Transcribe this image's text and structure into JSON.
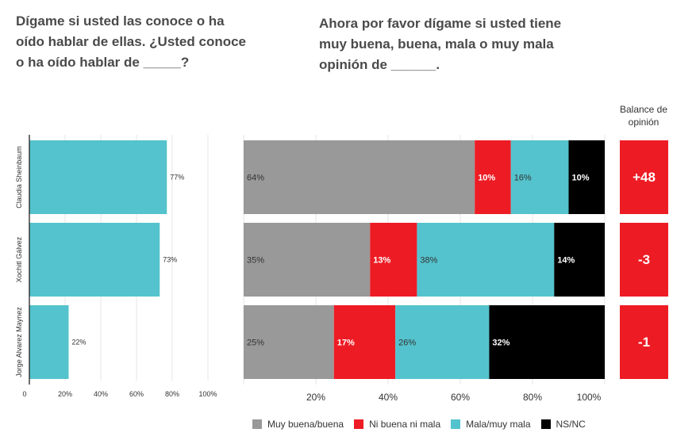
{
  "titles": {
    "left": "Dígame si usted las conoce o ha oído hablar de ellas. ¿Usted conoce o ha oído hablar de _____?",
    "right": "Ahora por favor dígame si usted tiene muy buena, buena, mala o muy mala opinión de ______.",
    "balance_header": "Balance de opinión"
  },
  "colors": {
    "awareness": "#54c3cd",
    "good": "#999999",
    "neutral": "#ed1c24",
    "bad": "#54c3cd",
    "nsnc": "#000000",
    "balance": "#ed1c24",
    "grid": "#e6e6e6",
    "axis": "#222222"
  },
  "chart_data": [
    {
      "type": "bar",
      "orientation": "horizontal",
      "categories": [
        "Claudia Sheinbaum",
        "Xochitl Gálvez",
        "Jorge Alvarez Maynez"
      ],
      "values": [
        77,
        73,
        22
      ],
      "value_labels": [
        "77%",
        "73%",
        "22%"
      ],
      "xlim": [
        0,
        100
      ],
      "ticks": [
        "0",
        "20%",
        "40%",
        "60%",
        "80%",
        "100%"
      ]
    },
    {
      "type": "bar",
      "orientation": "horizontal",
      "stacked": true,
      "categories": [
        "Claudia Sheinbaum",
        "Xochitl Gálvez",
        "Jorge Alvarez Maynez"
      ],
      "series": [
        {
          "name": "Muy buena/buena",
          "color": "#999999",
          "values": [
            64,
            35,
            25
          ],
          "labels": [
            "64%",
            "35%",
            "25%"
          ]
        },
        {
          "name": "Ni buena ni mala",
          "color": "#ed1c24",
          "values": [
            10,
            13,
            17
          ],
          "labels": [
            "10%",
            "13%",
            "17%"
          ]
        },
        {
          "name": "Mala/muy mala",
          "color": "#54c3cd",
          "values": [
            16,
            38,
            26
          ],
          "labels": [
            "16%",
            "38%",
            "26%"
          ]
        },
        {
          "name": "NS/NC",
          "color": "#000000",
          "values": [
            10,
            14,
            32
          ],
          "labels": [
            "10%",
            "14%",
            "32%"
          ]
        }
      ],
      "xlim": [
        0,
        100
      ],
      "ticks": [
        "20%",
        "40%",
        "60%",
        "80%",
        "100%"
      ],
      "legend": "bottom"
    },
    {
      "type": "table",
      "header": "Balance de opinión",
      "categories": [
        "Claudia Sheinbaum",
        "Xochitl Gálvez",
        "Jorge Alvarez Maynez"
      ],
      "values": [
        "+48",
        "-3",
        "-1"
      ]
    }
  ],
  "legend": [
    {
      "label": "Muy buena/buena",
      "color": "#999999"
    },
    {
      "label": "Ni buena ni mala",
      "color": "#ed1c24"
    },
    {
      "label": "Mala/muy mala",
      "color": "#54c3cd"
    },
    {
      "label": "NS/NC",
      "color": "#000000"
    }
  ]
}
